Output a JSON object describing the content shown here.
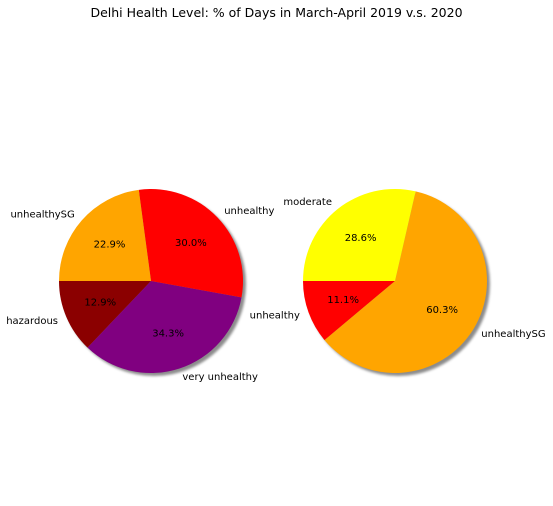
{
  "figure": {
    "title": "Delhi Health Level: % of Days in March-April 2019 v.s. 2020"
  },
  "chart_data": [
    {
      "type": "pie",
      "title": "",
      "shadow": true,
      "start_angle_deg": 180,
      "direction": "counterclockwise",
      "slices": [
        {
          "label": "hazardous",
          "value": 12.9,
          "pct_label": "12.9%",
          "color": "#8b0000"
        },
        {
          "label": "very unhealthy",
          "value": 34.3,
          "pct_label": "34.3%",
          "color": "#800080"
        },
        {
          "label": "unhealthy",
          "value": 30.0,
          "pct_label": "30.0%",
          "color": "#ff0000"
        },
        {
          "label": "unhealthySG",
          "value": 22.9,
          "pct_label": "22.9%",
          "color": "#ffa500"
        }
      ]
    },
    {
      "type": "pie",
      "title": "",
      "shadow": true,
      "start_angle_deg": 180,
      "direction": "counterclockwise",
      "slices": [
        {
          "label": "unhealthy",
          "value": 11.1,
          "pct_label": "11.1%",
          "color": "#ff0000"
        },
        {
          "label": "unhealthySG",
          "value": 60.3,
          "pct_label": "60.3%",
          "color": "#ffa500"
        },
        {
          "label": "moderate",
          "value": 28.6,
          "pct_label": "28.6%",
          "color": "#ffff00"
        }
      ]
    }
  ]
}
